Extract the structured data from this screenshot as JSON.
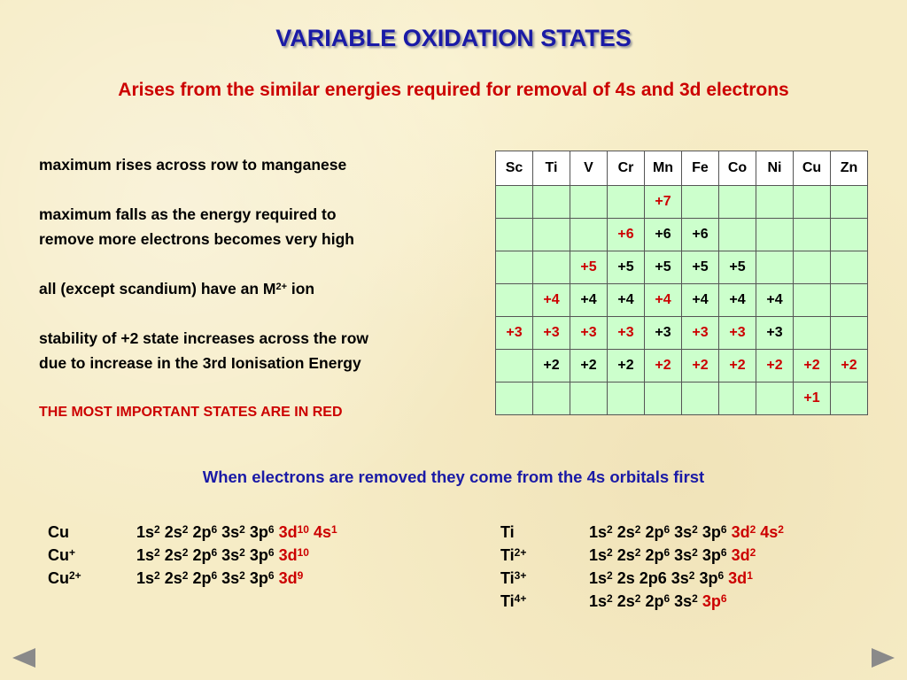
{
  "title": "VARIABLE OXIDATION STATES",
  "subtitle": "Arises from the similar energies required for removal of 4s and 3d electrons",
  "notes": {
    "n1": "maximum rises across row to manganese",
    "n2a": "maximum falls as the energy required to",
    "n2b": "remove more electrons becomes very high",
    "n3_pre": "all (except scandium) have an M",
    "n3_sup": "2+",
    "n3_post": " ion",
    "n4a": "stability of +2 state increases across the row",
    "n4b": "due to increase in the 3rd Ionisation Energy",
    "n5": "THE MOST IMPORTANT STATES ARE IN RED"
  },
  "table": {
    "headers": [
      "Sc",
      "Ti",
      "V",
      "Cr",
      "Mn",
      "Fe",
      "Co",
      "Ni",
      "Cu",
      "Zn"
    ],
    "rows": [
      [
        {
          "t": ""
        },
        {
          "t": ""
        },
        {
          "t": ""
        },
        {
          "t": ""
        },
        {
          "t": "+7",
          "r": true
        },
        {
          "t": ""
        },
        {
          "t": ""
        },
        {
          "t": ""
        },
        {
          "t": ""
        },
        {
          "t": ""
        }
      ],
      [
        {
          "t": ""
        },
        {
          "t": ""
        },
        {
          "t": ""
        },
        {
          "t": "+6",
          "r": true
        },
        {
          "t": "+6"
        },
        {
          "t": "+6"
        },
        {
          "t": ""
        },
        {
          "t": ""
        },
        {
          "t": ""
        },
        {
          "t": ""
        }
      ],
      [
        {
          "t": ""
        },
        {
          "t": ""
        },
        {
          "t": "+5",
          "r": true
        },
        {
          "t": "+5"
        },
        {
          "t": "+5"
        },
        {
          "t": "+5"
        },
        {
          "t": "+5"
        },
        {
          "t": ""
        },
        {
          "t": ""
        },
        {
          "t": ""
        }
      ],
      [
        {
          "t": ""
        },
        {
          "t": "+4",
          "r": true
        },
        {
          "t": "+4"
        },
        {
          "t": "+4"
        },
        {
          "t": "+4",
          "r": true
        },
        {
          "t": "+4"
        },
        {
          "t": "+4"
        },
        {
          "t": "+4"
        },
        {
          "t": ""
        },
        {
          "t": ""
        }
      ],
      [
        {
          "t": "+3",
          "r": true
        },
        {
          "t": "+3",
          "r": true
        },
        {
          "t": "+3",
          "r": true
        },
        {
          "t": "+3",
          "r": true
        },
        {
          "t": "+3"
        },
        {
          "t": "+3",
          "r": true
        },
        {
          "t": "+3",
          "r": true
        },
        {
          "t": "+3"
        },
        {
          "t": ""
        },
        {
          "t": ""
        }
      ],
      [
        {
          "t": ""
        },
        {
          "t": "+2"
        },
        {
          "t": "+2"
        },
        {
          "t": "+2"
        },
        {
          "t": "+2",
          "r": true
        },
        {
          "t": "+2",
          "r": true
        },
        {
          "t": "+2",
          "r": true
        },
        {
          "t": "+2",
          "r": true
        },
        {
          "t": "+2",
          "r": true
        },
        {
          "t": "+2",
          "r": true
        }
      ],
      [
        {
          "t": ""
        },
        {
          "t": ""
        },
        {
          "t": ""
        },
        {
          "t": ""
        },
        {
          "t": ""
        },
        {
          "t": ""
        },
        {
          "t": ""
        },
        {
          "t": ""
        },
        {
          "t": "+1",
          "r": true
        },
        {
          "t": ""
        }
      ]
    ]
  },
  "blue_line": "When electrons are removed they come from the 4s orbitals first",
  "configs_left": [
    {
      "ion": "Cu",
      "ion_sup": "",
      "parts": [
        [
          "1s",
          "2",
          false
        ],
        [
          " 2s",
          "2",
          false
        ],
        [
          " 2p",
          "6",
          false
        ],
        [
          " 3s",
          "2",
          false
        ],
        [
          " 3p",
          "6",
          false
        ],
        [
          " 3d",
          "10",
          true
        ],
        [
          " 4s",
          "1",
          true
        ]
      ]
    },
    {
      "ion": "Cu",
      "ion_sup": "+",
      "parts": [
        [
          "1s",
          "2",
          false
        ],
        [
          " 2s",
          "2",
          false
        ],
        [
          " 2p",
          "6",
          false
        ],
        [
          " 3s",
          "2",
          false
        ],
        [
          " 3p",
          "6",
          false
        ],
        [
          " 3d",
          "10",
          true
        ]
      ]
    },
    {
      "ion": "Cu",
      "ion_sup": "2+",
      "parts": [
        [
          "1s",
          "2",
          false
        ],
        [
          " 2s",
          "2",
          false
        ],
        [
          " 2p",
          "6",
          false
        ],
        [
          " 3s",
          "2",
          false
        ],
        [
          " 3p",
          "6",
          false
        ],
        [
          " 3d",
          "9",
          true
        ]
      ]
    }
  ],
  "configs_right": [
    {
      "ion": "Ti",
      "ion_sup": "",
      "parts": [
        [
          "1s",
          "2",
          false
        ],
        [
          " 2s",
          "2",
          false
        ],
        [
          " 2p",
          "6",
          false
        ],
        [
          " 3s",
          "2",
          false
        ],
        [
          " 3p",
          "6",
          false
        ],
        [
          " 3d",
          "2",
          true
        ],
        [
          " 4s",
          "2",
          true
        ]
      ]
    },
    {
      "ion": "Ti",
      "ion_sup": "2+",
      "parts": [
        [
          "1s",
          "2",
          false
        ],
        [
          " 2s",
          "2",
          false
        ],
        [
          " 2p",
          "6",
          false
        ],
        [
          " 3s",
          "2",
          false
        ],
        [
          " 3p",
          "6",
          false
        ],
        [
          " 3d",
          "2",
          true
        ]
      ]
    },
    {
      "ion": "Ti",
      "ion_sup": "3+",
      "parts": [
        [
          "1s",
          "2",
          false
        ],
        [
          " 2s 2p6 3s",
          "2",
          false
        ],
        [
          " 3p",
          "6",
          false
        ],
        [
          " 3d",
          "1",
          true
        ]
      ]
    },
    {
      "ion": "Ti",
      "ion_sup": "4+",
      "parts": [
        [
          "1s",
          "2",
          false
        ],
        [
          " 2s",
          "2",
          false
        ],
        [
          " 2p",
          "6",
          false
        ],
        [
          " 3s",
          "2",
          false
        ],
        [
          " 3p",
          "6",
          true
        ]
      ]
    }
  ],
  "nav": {
    "prev_icon": "left-triangle-icon",
    "next_icon": "right-triangle-icon",
    "color": "#8a8a8a"
  }
}
